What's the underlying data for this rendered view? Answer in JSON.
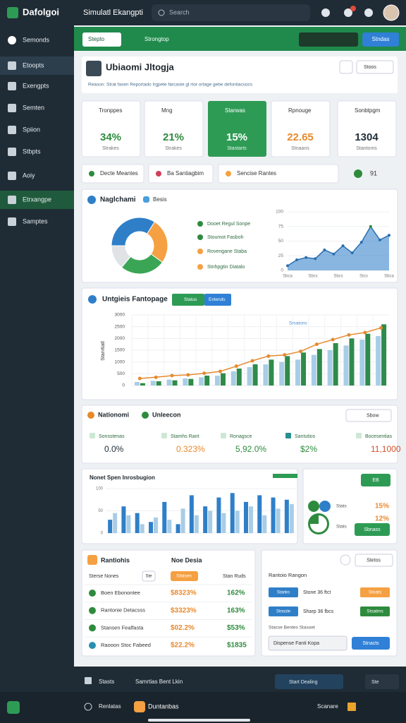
{
  "sidebar": {
    "brand": "Dafolgoi",
    "items": [
      "Semonds",
      "Etoopts",
      "Exengpts",
      "Semten",
      "Spiion",
      "Stbpts",
      "Aoiy",
      "Etrxangpe",
      "Samptes"
    ]
  },
  "topbar": {
    "title": "Simulatl Ekangpti",
    "search": "Search"
  },
  "toolbar": {
    "select": "Stepto",
    "label": "Strongtop",
    "button": "Stndas"
  },
  "header": {
    "title": "Ubiaomi Jltogja",
    "subtitle": "Reason: Strat fasen Reportado Irgpete farcaste gl rtor ortage gebe defontiacsocs",
    "menu": "Stoos"
  },
  "kpis": [
    {
      "label": "Tronppes",
      "value": "34%",
      "note": "Strakes",
      "color": "#2e8b3e"
    },
    {
      "label": "Mng",
      "value": "21%",
      "note": "Strakes",
      "color": "#2e8b3e"
    },
    {
      "label": "Starwas",
      "value": "15%",
      "note": "Stastarts",
      "color": "#ffffff"
    },
    {
      "label": "Rpnouge",
      "value": "22.65",
      "note": "Stnaans",
      "color": "#e8892b"
    },
    {
      "label": "Sonbtpgm",
      "value": "1304",
      "note": "Stantoms",
      "color": "#22303a"
    }
  ],
  "tabs": [
    "Decte Meantes",
    "Ba Santiagbim",
    "Sencise Rantes"
  ],
  "tab_count": "91",
  "donut": {
    "title": "Naglchami",
    "tag": "Besis",
    "values": [
      34,
      26,
      26,
      14
    ],
    "colors": [
      "#2f7fc8",
      "#f5a042",
      "#3aa655",
      "#dfe3e6"
    ],
    "legend": [
      {
        "label": "Dooet Regul Sonpe",
        "color": "#2e8b3e"
      },
      {
        "label": "Stoumot Fasboh",
        "color": "#2e8b3e"
      },
      {
        "label": "Rovengane Staba",
        "color": "#f5a042"
      },
      {
        "label": "Stnhpgtin Diatalo",
        "color": "#f5a042"
      }
    ]
  },
  "trend": {
    "values": [
      8,
      18,
      22,
      20,
      35,
      28,
      42,
      30,
      48,
      75,
      52,
      60
    ],
    "ylim": [
      0,
      100
    ],
    "yticks": [
      0,
      25,
      50,
      75,
      100
    ],
    "xlabels": [
      "Sbca",
      "Sbcs",
      "Sbcs",
      "Stcs",
      "Sbca"
    ],
    "color": "#4a8fd0"
  },
  "growth": {
    "title": "Untgieis Fantopage",
    "buttons": [
      "Status",
      "Extends"
    ],
    "ylabel": "Stanrtiatl",
    "note": "Srsatons",
    "ylim": [
      0,
      3000
    ],
    "yticks": [
      0,
      500,
      1000,
      1500,
      2000,
      2500,
      3000
    ],
    "series": [
      {
        "color": "#a8cde6",
        "values": [
          150,
          200,
          250,
          300,
          350,
          420,
          600,
          780,
          900,
          1000,
          1100,
          1300,
          1500,
          1700,
          1950,
          2100
        ]
      },
      {
        "color": "#2e8b4a",
        "values": [
          100,
          180,
          220,
          280,
          420,
          520,
          720,
          900,
          1100,
          1250,
          1400,
          1550,
          1800,
          2000,
          2200,
          2600
        ]
      }
    ],
    "line": {
      "color": "#e58a2e",
      "values": [
        300,
        350,
        420,
        450,
        520,
        600,
        820,
        1050,
        1250,
        1300,
        1450,
        1750,
        1950,
        2150,
        2250,
        2450
      ]
    }
  },
  "metrics": {
    "title": "Nationomi",
    "subtitle": "Unleecon",
    "menu": "Sbow",
    "items": [
      {
        "label": "Sonsstenas",
        "value": "0.0%",
        "color": "#22303a"
      },
      {
        "label": "Stamhs Rant",
        "value": "0.323%",
        "color": "#e8892b"
      },
      {
        "label": "Ronagsce",
        "value": "5,92.0%",
        "color": "#2e8b3e"
      },
      {
        "label": "Santutios",
        "value": "$2%",
        "color": "#2e8b3e"
      },
      {
        "label": "Bocesentias",
        "value": "11,1000",
        "color": "#d0502a"
      }
    ]
  },
  "spend": {
    "title": "Nonet Spen Inrosbugion",
    "ylim": [
      0,
      100
    ],
    "yticks": [
      0,
      50,
      100
    ],
    "series": [
      {
        "color": "#2f7fc8",
        "values": [
          30,
          60,
          45,
          25,
          70,
          20,
          85,
          60,
          80,
          90,
          70,
          85,
          80,
          75
        ]
      },
      {
        "color": "#a8cde6",
        "values": [
          45,
          40,
          20,
          35,
          30,
          55,
          40,
          50,
          45,
          50,
          60,
          40,
          55,
          65
        ]
      }
    ],
    "side": {
      "button": "EB",
      "rows": [
        {
          "label": "Stats",
          "value": "15%"
        },
        {
          "label": "Stats",
          "value": "12%"
        }
      ],
      "action": "Sbnass"
    }
  },
  "table": {
    "title": "Rantiohis",
    "subtitle": "Noe Desia",
    "columns": [
      "Sterse Nones",
      "Ste",
      "Sfalsen",
      "Stan Ruds"
    ],
    "rows": [
      [
        "Boen Ebonontee",
        "$8323%",
        "162%"
      ],
      [
        "Rantonie Detacsss",
        "$3323%",
        "163%"
      ],
      [
        "Stansen Fealfasta",
        "$02.2%",
        "$53%"
      ],
      [
        "Raooon Stoc Fabeed",
        "$22.2%",
        "$1835"
      ]
    ]
  },
  "panel": {
    "button": "Stetos",
    "title": "Rantoio Rangon",
    "rows": [
      {
        "tag": "Stanks",
        "text": "Stone 36 ftct",
        "action": "Stoats",
        "color": "#f5a042"
      },
      {
        "tag": "Stnosle",
        "text": "Sharp 36 fbcs",
        "action": "Stsatms",
        "color": "#2e8b3e"
      }
    ],
    "caption": "Stacse Bentes Stasoet",
    "select": "Dispense Fanti Kopa",
    "submit": "Stnacts"
  },
  "footer": {
    "items": [
      "Stasts",
      "Samrtias Bent Lkin"
    ],
    "dropdown": "Start Dealing",
    "end": "Ste"
  },
  "bottom": [
    "Renlatas",
    "Duntanbas",
    "Scanare"
  ]
}
